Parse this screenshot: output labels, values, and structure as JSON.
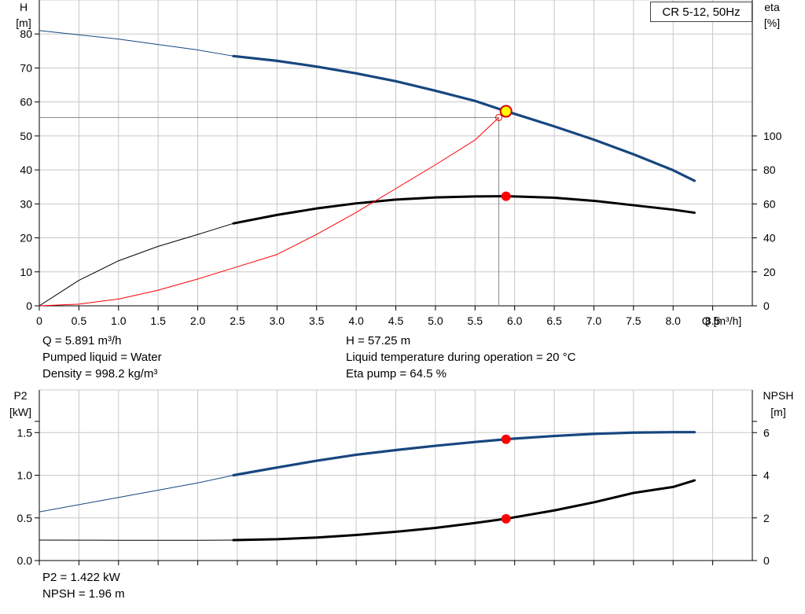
{
  "legend": "CR 5-12, 50Hz",
  "top_info": {
    "left": [
      "Q = 5.891 m³/h",
      "Pumped liquid = Water",
      "Density = 998.2 kg/m³"
    ],
    "right": [
      "H = 57.25 m",
      "Liquid temperature during operation = 20 °C",
      "Eta pump = 64.5 %"
    ]
  },
  "bottom_info": [
    "P2 = 1.422 kW",
    "NPSH = 1.96 m"
  ],
  "colors": {
    "blue": "#17467f",
    "black": "#000000",
    "red": "#ff0000",
    "grid": "#c8c8c8",
    "duty_fill": "#ffff00",
    "duty_ring": "#cc0000"
  },
  "chart_data": [
    {
      "type": "line",
      "title": "",
      "xlabel": "Q [m³/h]",
      "ylabel_left": [
        "H",
        "[m]"
      ],
      "ylabel_right": [
        "eta",
        "[%]"
      ],
      "xlim": [
        0,
        9
      ],
      "ylim_left": [
        0,
        90
      ],
      "ylim_right": [
        0,
        180
      ],
      "x_ticks": [
        "0",
        "0.5",
        "1.0",
        "1.5",
        "2.0",
        "2.5",
        "3.0",
        "3.5",
        "4.0",
        "4.5",
        "5.0",
        "5.5",
        "6.0",
        "6.5",
        "7.0",
        "7.5",
        "8.0",
        "8.5"
      ],
      "y_left_ticks": [
        "0",
        "10",
        "20",
        "30",
        "40",
        "50",
        "60",
        "70",
        "80"
      ],
      "y_right_ticks": [
        "0",
        "20",
        "40",
        "60",
        "80",
        "100"
      ],
      "grid": true,
      "series": [
        {
          "axis": "left",
          "color": "blue",
          "x": [
            0,
            1,
            2,
            2.45,
            3,
            3.5,
            4,
            4.5,
            5,
            5.5,
            5.891,
            6,
            6.5,
            7,
            7.5,
            8,
            8.27
          ],
          "y": [
            81,
            78.5,
            75.3,
            73.5,
            72.1,
            70.4,
            68.4,
            66.1,
            63.3,
            60.3,
            57.25,
            56.5,
            52.8,
            48.9,
            44.6,
            39.9,
            36.8
          ],
          "thin_until_x": 2.45
        },
        {
          "axis": "right",
          "color": "black",
          "x": [
            0,
            0.5,
            1,
            1.5,
            2,
            2.45,
            3,
            3.5,
            4,
            4.5,
            5,
            5.5,
            5.891,
            6,
            6.5,
            7,
            7.5,
            8,
            8.27
          ],
          "y": [
            0,
            15,
            26.5,
            35,
            42,
            48.5,
            53.5,
            57.3,
            60.3,
            62.5,
            63.8,
            64.4,
            64.5,
            64.4,
            63.6,
            61.8,
            59.2,
            56.6,
            54.8
          ],
          "thin_until_x": 2.45
        },
        {
          "axis": "left",
          "color": "red",
          "x": [
            0,
            0.5,
            1,
            1.5,
            2,
            2.5,
            3,
            3.5,
            4,
            4.5,
            5,
            5.5,
            5.8
          ],
          "y": [
            0,
            0.5,
            2,
            4.6,
            7.9,
            11.5,
            15.1,
            21,
            27.5,
            34.5,
            41.5,
            48.8,
            55.4
          ],
          "thin_until_x": 9
        }
      ],
      "system_point": {
        "x": 5.8,
        "y": 55.4
      },
      "duty_point": {
        "x": 5.891,
        "h": 57.25,
        "eta": 64.5
      }
    },
    {
      "type": "line",
      "title": "",
      "xlabel": "",
      "ylabel_left": [
        "P2",
        "[kW]"
      ],
      "ylabel_right": [
        "NPSH",
        "[m]"
      ],
      "xlim": [
        0,
        9
      ],
      "ylim_left": [
        0,
        2.0
      ],
      "ylim_right": [
        0,
        8
      ],
      "y_left_ticks": [
        "0.0",
        "0.5",
        "1.0",
        "1.5"
      ],
      "y_right_ticks": [
        "0",
        "2",
        "4",
        "6"
      ],
      "grid": true,
      "series": [
        {
          "axis": "left",
          "color": "blue",
          "x": [
            0,
            1,
            2,
            2.45,
            3,
            3.5,
            4,
            4.5,
            5,
            5.5,
            5.891,
            6,
            6.5,
            7,
            7.5,
            8,
            8.27
          ],
          "y": [
            0.57,
            0.74,
            0.91,
            1.0,
            1.09,
            1.17,
            1.24,
            1.295,
            1.345,
            1.39,
            1.422,
            1.43,
            1.46,
            1.485,
            1.5,
            1.505,
            1.505
          ],
          "thin_until_x": 2.45
        },
        {
          "axis": "right",
          "color": "black",
          "x": [
            0,
            1,
            2,
            2.45,
            3,
            3.5,
            4,
            4.5,
            5,
            5.5,
            5.891,
            6,
            6.5,
            7,
            7.5,
            8,
            8.27
          ],
          "y": [
            0.96,
            0.95,
            0.95,
            0.96,
            1.0,
            1.08,
            1.2,
            1.35,
            1.53,
            1.76,
            1.96,
            2.03,
            2.35,
            2.73,
            3.17,
            3.45,
            3.76
          ],
          "thin_until_x": 2.45
        }
      ],
      "duty_point": {
        "x": 5.891,
        "p2": 1.422,
        "npsh": 1.96
      }
    }
  ]
}
